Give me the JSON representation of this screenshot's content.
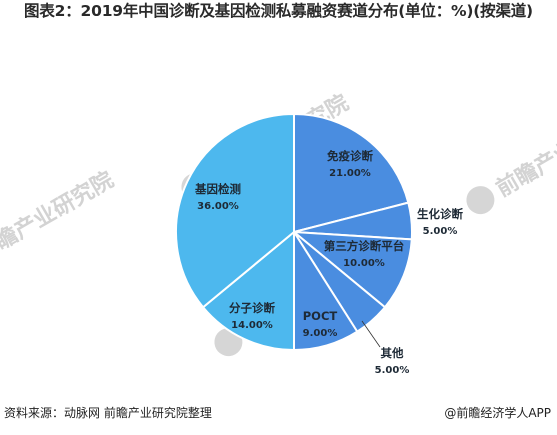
{
  "title": "图表2：2019年中国诊断及基因检测私募融资赛道分布(单位：%)(按渠道)",
  "chart_data": {
    "type": "pie",
    "title": "图表2：2019年中国诊断及基因检测私募融资赛道分布(单位：%)(按渠道)",
    "slices": [
      {
        "label": "免疫诊断",
        "value": 21.0,
        "display": "21.00%",
        "color": "#4a8de0"
      },
      {
        "label": "生化诊断",
        "value": 5.0,
        "display": "5.00%",
        "color": "#4a8de0"
      },
      {
        "label": "第三方诊断平台",
        "value": 10.0,
        "display": "10.00%",
        "color": "#4a8de0"
      },
      {
        "label": "其他",
        "value": 5.0,
        "display": "5.00%",
        "color": "#4a8de0"
      },
      {
        "label": "POCT",
        "value": 9.0,
        "display": "9.00%",
        "color": "#4a8de0"
      },
      {
        "label": "分子诊断",
        "value": 14.0,
        "display": "14.00%",
        "color": "#4db8ee"
      },
      {
        "label": "基因检测",
        "value": 36.0,
        "display": "36.00%",
        "color": "#4db8ee"
      }
    ]
  },
  "watermark": "前瞻产业研究院",
  "footer": {
    "source": "资料来源：动脉网 前瞻产业研究院整理",
    "brand": "@前瞻经济学人APP"
  }
}
